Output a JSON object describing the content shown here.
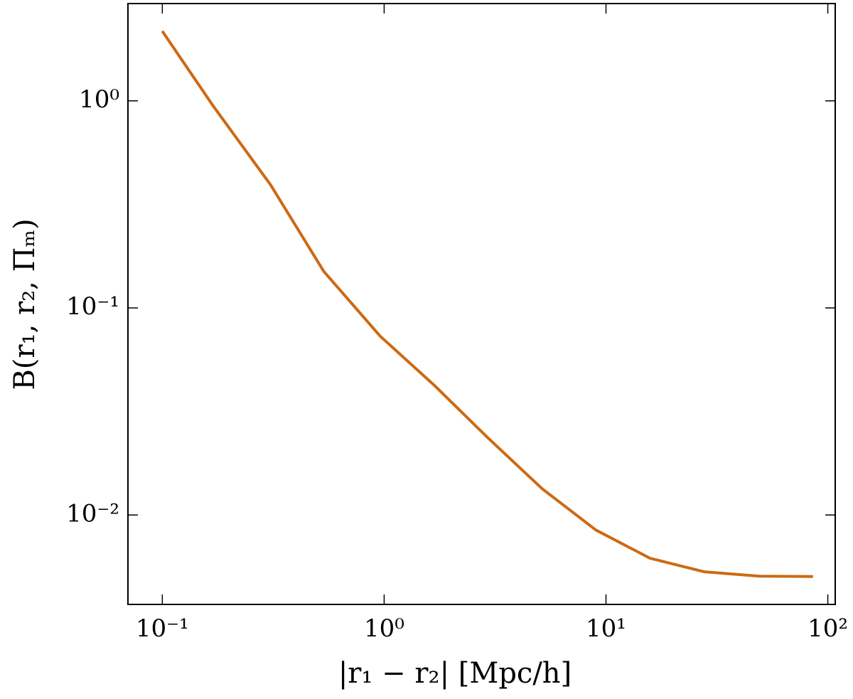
{
  "chart_data": {
    "type": "line",
    "x_label": "|r₁ − r₂| [Mpc/h]",
    "y_label": "B(r₁, r₂, Πₘ)",
    "log_x": true,
    "log_y": true,
    "grid": false,
    "xlim": [
      0.07,
      108
    ],
    "ylim": [
      0.0037,
      2.95
    ],
    "xticks": [
      {
        "value": 0.1,
        "label": "10⁻¹"
      },
      {
        "value": 1,
        "label": "10⁰"
      },
      {
        "value": 10,
        "label": "10¹"
      },
      {
        "value": 100,
        "label": "10²"
      }
    ],
    "yticks": [
      {
        "value": 0.01,
        "label": "10⁻²"
      },
      {
        "value": 0.1,
        "label": "10⁻¹"
      },
      {
        "value": 1,
        "label": "10⁰"
      }
    ],
    "series": [
      {
        "color": "#cc6a14",
        "x": [
          0.1,
          0.17,
          0.307,
          0.535,
          0.96,
          1.68,
          2.92,
          5.15,
          9.0,
          15.8,
          27.7,
          49.2,
          85.7
        ],
        "values": [
          2.17,
          0.94,
          0.394,
          0.15,
          0.073,
          0.0424,
          0.0237,
          0.0134,
          0.00847,
          0.00618,
          0.00532,
          0.00507,
          0.00505
        ]
      }
    ]
  }
}
